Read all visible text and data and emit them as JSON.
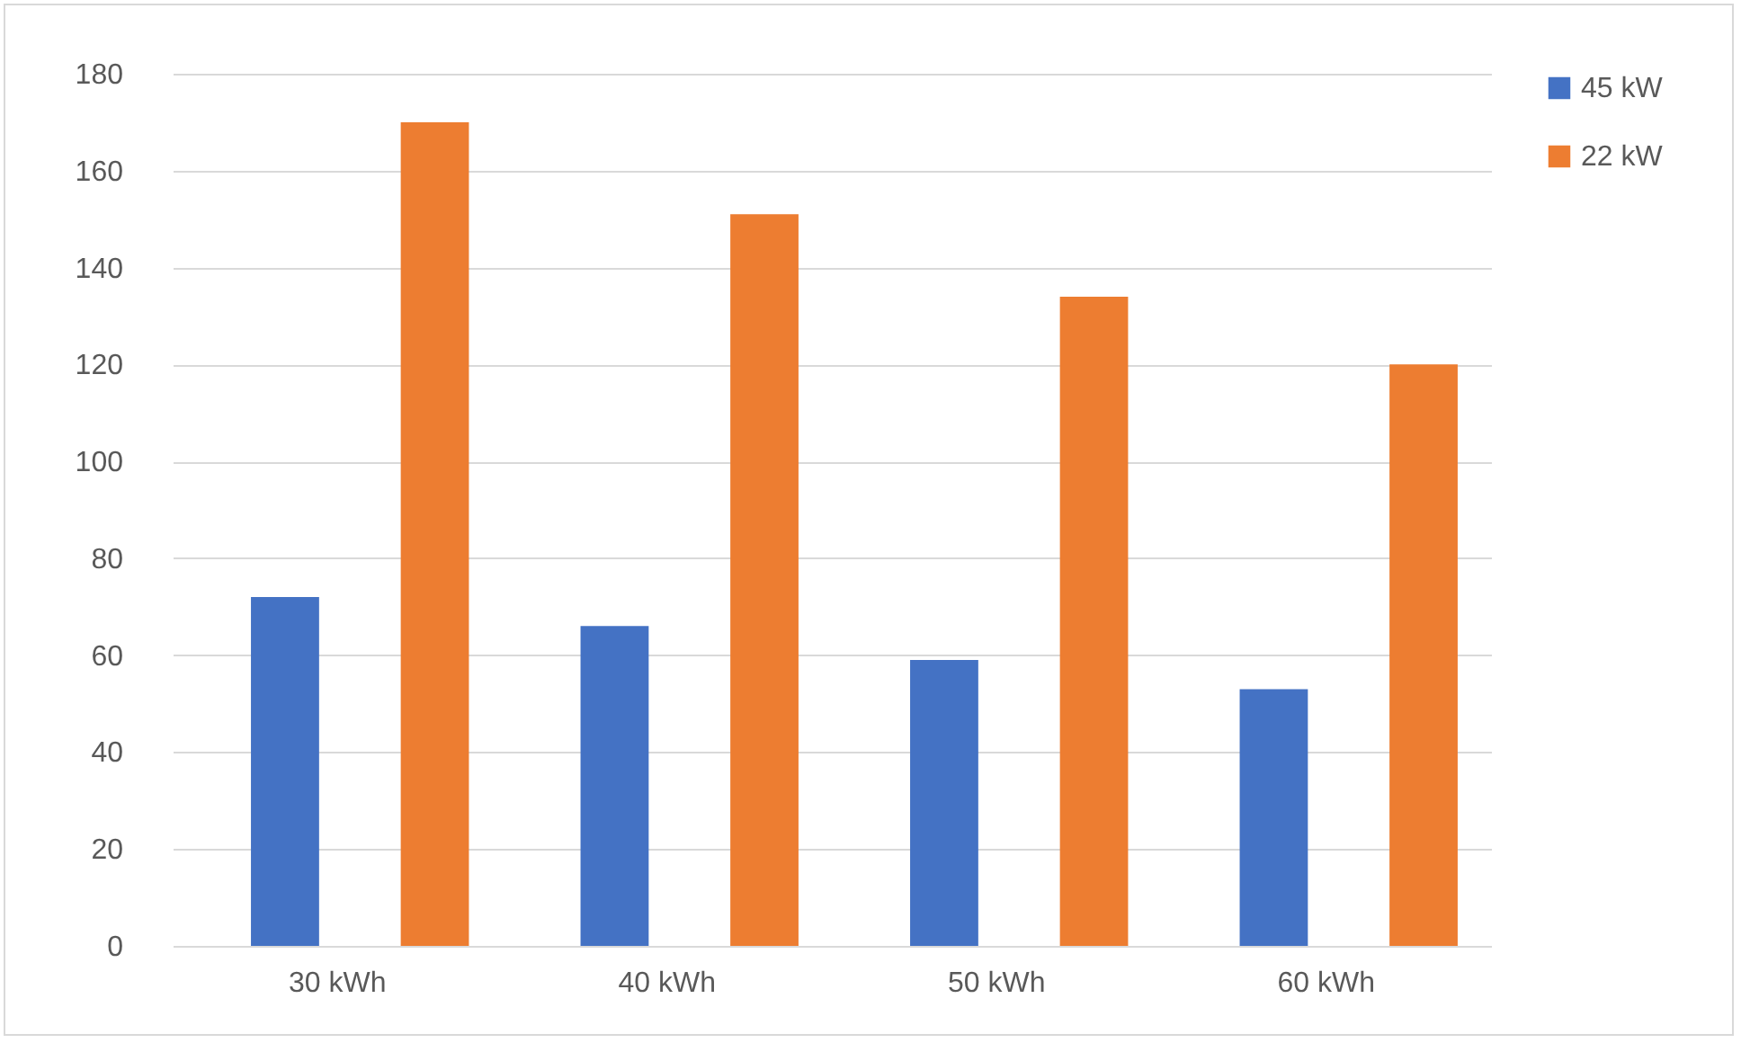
{
  "chart_data": {
    "type": "bar",
    "categories": [
      "30 kWh",
      "40 kWh",
      "50 kWh",
      "60 kWh"
    ],
    "series": [
      {
        "name": "45 kW",
        "color": "#4472c4",
        "values": [
          72,
          66,
          59,
          53
        ]
      },
      {
        "name": "22 kW",
        "color": "#ed7d31",
        "values": [
          170,
          151,
          134,
          120
        ]
      }
    ],
    "ylim": [
      0,
      180
    ],
    "yticks": [
      0,
      20,
      40,
      60,
      80,
      100,
      120,
      140,
      160,
      180
    ],
    "grid": "y",
    "legend": "right"
  }
}
